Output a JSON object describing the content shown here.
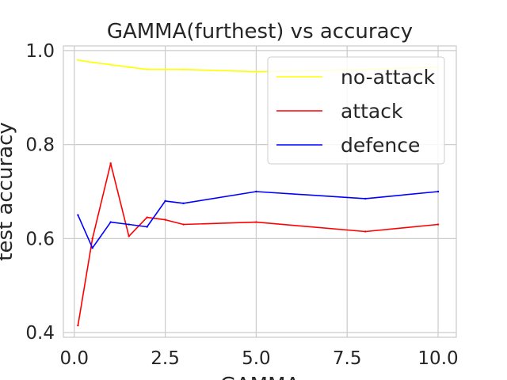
{
  "chart_data": {
    "type": "line",
    "title": "GAMMA(furthest) vs accuracy",
    "xlabel": "GAMMA",
    "ylabel": "test accuracy",
    "xlim": [
      -0.3,
      10.5
    ],
    "ylim": [
      0.39,
      1.01
    ],
    "xticks": [
      0.0,
      2.5,
      5.0,
      7.5,
      10.0
    ],
    "xtick_labels": [
      "0.0",
      "2.5",
      "5.0",
      "7.5",
      "10.0"
    ],
    "yticks": [
      0.4,
      0.6,
      0.8,
      1.0
    ],
    "ytick_labels": [
      "0.4",
      "0.6",
      "0.8",
      "1.0"
    ],
    "grid": true,
    "legend_position": "top-right",
    "series": [
      {
        "name": "no-attack",
        "color": "#ffff00",
        "x": [
          0.1,
          0.5,
          1.0,
          1.5,
          2.0,
          2.5,
          3.0,
          5.0,
          8.0,
          10.0
        ],
        "y": [
          0.98,
          0.975,
          0.97,
          0.965,
          0.96,
          0.96,
          0.96,
          0.955,
          0.96,
          0.965
        ]
      },
      {
        "name": "attack",
        "color": "#ff0000",
        "x": [
          0.1,
          0.5,
          1.0,
          1.5,
          2.0,
          2.5,
          3.0,
          5.0,
          8.0,
          10.0
        ],
        "y": [
          0.415,
          0.6,
          0.76,
          0.605,
          0.645,
          0.64,
          0.63,
          0.635,
          0.615,
          0.63
        ]
      },
      {
        "name": "defence",
        "color": "#0000ff",
        "x": [
          0.1,
          0.5,
          1.0,
          1.5,
          2.0,
          2.5,
          3.0,
          5.0,
          8.0,
          10.0
        ],
        "y": [
          0.65,
          0.58,
          0.635,
          0.63,
          0.625,
          0.68,
          0.675,
          0.7,
          0.685,
          0.7
        ]
      }
    ]
  }
}
